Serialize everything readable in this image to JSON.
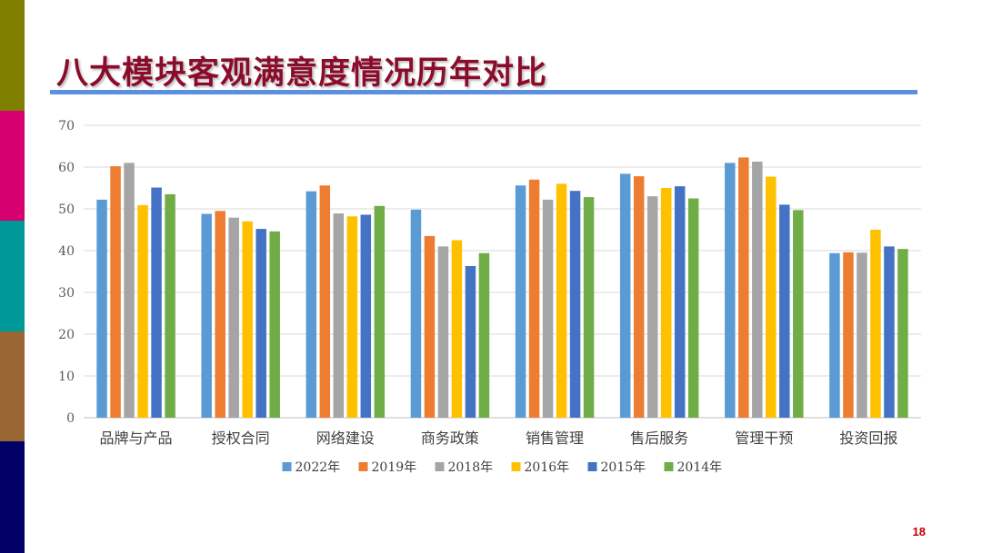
{
  "slide": {
    "title": "八大模块客观满意度情况历年对比",
    "page_number": "18",
    "side_colors": [
      "#808000",
      "#d6006e",
      "#009999",
      "#996633",
      "#000066"
    ]
  },
  "chart_data": {
    "type": "bar",
    "title": "",
    "xlabel": "",
    "ylabel": "",
    "ylim": [
      0,
      70
    ],
    "yticks": [
      0,
      10,
      20,
      30,
      40,
      50,
      60,
      70
    ],
    "grid": true,
    "legend_position": "bottom",
    "categories": [
      "品牌与产品",
      "授权合同",
      "网络建设",
      "商务政策",
      "销售管理",
      "售后服务",
      "管理干预",
      "投资回报"
    ],
    "series": [
      {
        "name": "2022年",
        "color": "#5b9bd5",
        "values": [
          52.2,
          48.8,
          54.2,
          49.8,
          55.6,
          58.4,
          61.0,
          39.4
        ]
      },
      {
        "name": "2019年",
        "color": "#ed7d31",
        "values": [
          60.2,
          49.5,
          55.6,
          43.5,
          57.0,
          57.8,
          62.3,
          39.6
        ]
      },
      {
        "name": "2018年",
        "color": "#a5a5a5",
        "values": [
          61.0,
          47.9,
          48.9,
          41.0,
          52.2,
          53.0,
          61.3,
          39.5
        ]
      },
      {
        "name": "2016年",
        "color": "#ffc000",
        "values": [
          50.9,
          47.0,
          48.2,
          42.5,
          56.0,
          55.0,
          57.7,
          45.0
        ]
      },
      {
        "name": "2015年",
        "color": "#4472c4",
        "values": [
          55.1,
          45.2,
          48.6,
          36.3,
          54.3,
          55.4,
          51.0,
          41.0
        ]
      },
      {
        "name": "2014年",
        "color": "#70ad47",
        "values": [
          53.5,
          44.6,
          50.7,
          39.4,
          52.8,
          52.5,
          49.7,
          40.4
        ]
      }
    ]
  }
}
